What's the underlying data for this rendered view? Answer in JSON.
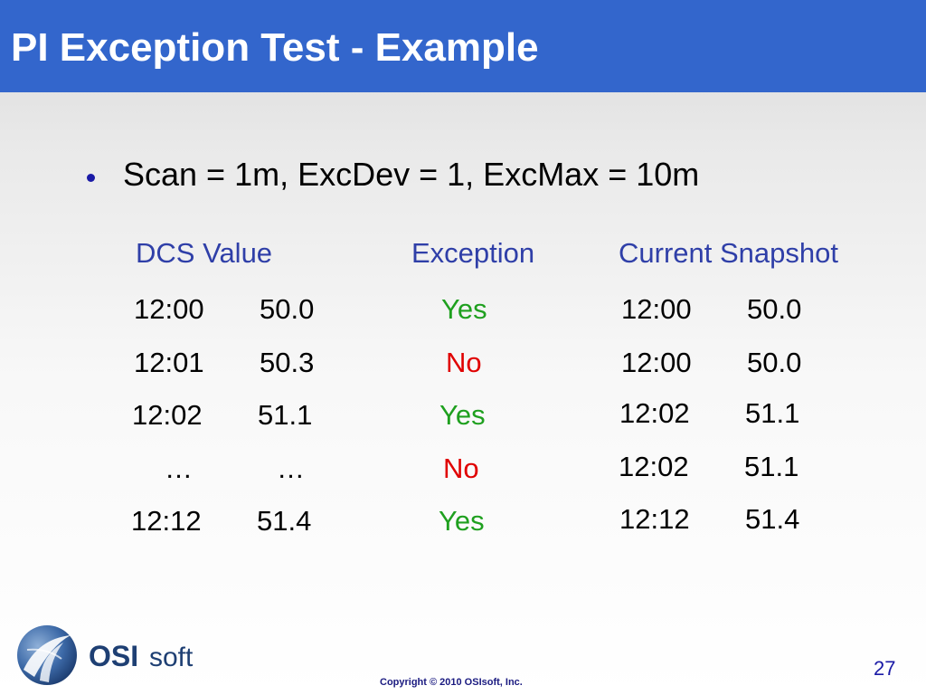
{
  "slide": {
    "title": "PI Exception Test - Example",
    "bullet": "Scan = 1m, ExcDev = 1, ExcMax = 10m",
    "headers": {
      "dcs": "DCS Value",
      "exception": "Exception",
      "snapshot": "Current Snapshot"
    },
    "rows": [
      {
        "dcs_time": "12:00",
        "dcs_value": "50.0",
        "exception": "Yes",
        "snap_time": "12:00",
        "snap_value": "50.0"
      },
      {
        "dcs_time": "12:01",
        "dcs_value": "50.3",
        "exception": "No",
        "snap_time": "12:00",
        "snap_value": "50.0"
      },
      {
        "dcs_time": "12:02",
        "dcs_value": "51.1",
        "exception": "Yes",
        "snap_time": "12:02",
        "snap_value": "51.1"
      },
      {
        "dcs_time": "…",
        "dcs_value": "…",
        "exception": "No",
        "snap_time": "12:02",
        "snap_value": "51.1"
      },
      {
        "dcs_time": "12:12",
        "dcs_value": "51.4",
        "exception": "Yes",
        "snap_time": "12:12",
        "snap_value": "51.4"
      }
    ],
    "colors": {
      "title_bar": "#3366cc",
      "header_text": "#2f3fa8",
      "yes": "#1fa01f",
      "no": "#e00000"
    }
  },
  "footer": {
    "logo_text_bold": "OSI",
    "logo_text_light": "soft",
    "copyright": "Copyright © 2010 OSIsoft, Inc.",
    "page_number": "27"
  }
}
